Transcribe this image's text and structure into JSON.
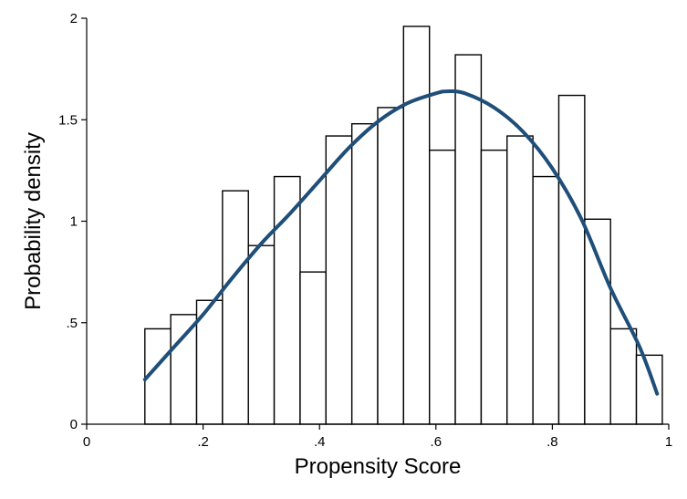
{
  "chart_data": {
    "type": "bar",
    "xlabel": "Propensity Score",
    "ylabel": "Probability density",
    "xlim": [
      0,
      1
    ],
    "ylim": [
      0,
      2
    ],
    "x_ticks": [
      {
        "value": 0,
        "label": "0"
      },
      {
        "value": 0.2,
        "label": ".2"
      },
      {
        "value": 0.4,
        "label": ".4"
      },
      {
        "value": 0.6,
        "label": ".6"
      },
      {
        "value": 0.8,
        "label": ".8"
      },
      {
        "value": 1,
        "label": "1"
      }
    ],
    "y_ticks": [
      {
        "value": 0,
        "label": "0"
      },
      {
        "value": 0.5,
        "label": ".5"
      },
      {
        "value": 1,
        "label": "1"
      },
      {
        "value": 1.5,
        "label": "1.5"
      },
      {
        "value": 2,
        "label": "2"
      }
    ],
    "histogram": {
      "bin_edges": [
        0.1,
        0.1444,
        0.1889,
        0.2333,
        0.2778,
        0.3222,
        0.3667,
        0.4111,
        0.4556,
        0.5,
        0.5444,
        0.5889,
        0.6333,
        0.6778,
        0.7222,
        0.7667,
        0.8111,
        0.8556,
        0.9,
        0.9444,
        0.9889
      ],
      "values": [
        0.47,
        0.54,
        0.61,
        1.15,
        0.88,
        1.22,
        0.75,
        1.42,
        1.48,
        1.56,
        1.96,
        1.35,
        1.82,
        1.35,
        1.42,
        1.22,
        1.62,
        1.01,
        0.47,
        0.34
      ],
      "fill": "#ffffff",
      "stroke": "#000000"
    },
    "fitted_curve": {
      "type": "line",
      "x": [
        0.1,
        0.15,
        0.2,
        0.25,
        0.3,
        0.35,
        0.4,
        0.45,
        0.5,
        0.55,
        0.6,
        0.62,
        0.65,
        0.7,
        0.75,
        0.8,
        0.85,
        0.9,
        0.95,
        0.98
      ],
      "y": [
        0.22,
        0.38,
        0.54,
        0.72,
        0.89,
        1.04,
        1.2,
        1.36,
        1.49,
        1.58,
        1.63,
        1.64,
        1.63,
        1.56,
        1.44,
        1.26,
        1.01,
        0.67,
        0.38,
        0.15
      ],
      "color": "#1f4e79"
    },
    "grid": false,
    "legend": "none"
  }
}
